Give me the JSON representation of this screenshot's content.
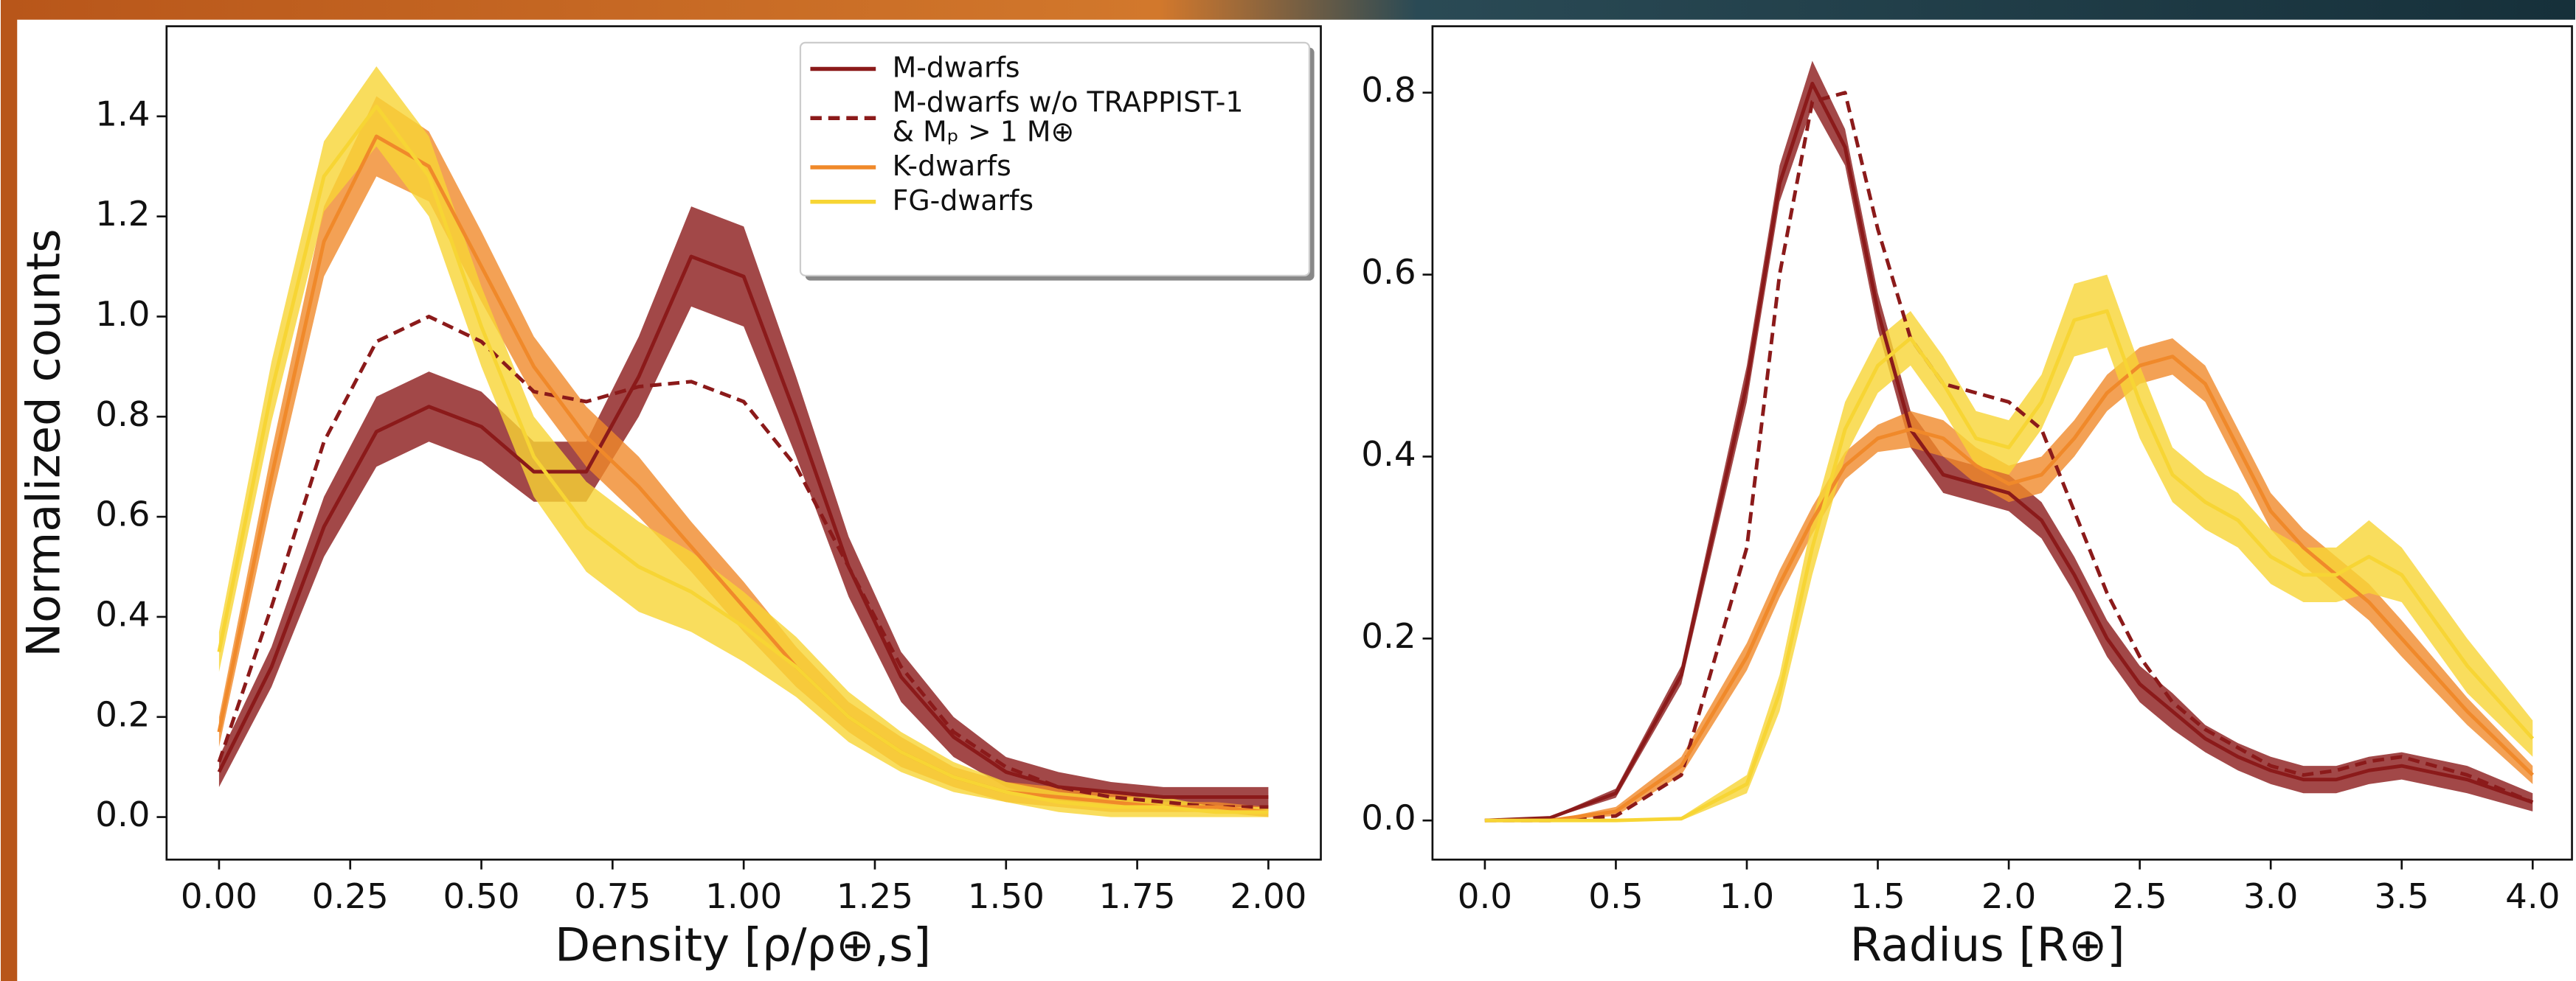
{
  "chart_data": [
    {
      "type": "line",
      "xlabel": "Density [ρ/ρ⊕,s]",
      "ylabel": "Normalized counts",
      "legend": "upper right",
      "x": [
        0,
        0.1,
        0.2,
        0.3,
        0.4,
        0.5,
        0.6,
        0.7,
        0.8,
        0.9,
        1.0,
        1.1,
        1.2,
        1.3,
        1.4,
        1.5,
        1.6,
        1.7,
        1.8,
        1.9,
        2.0
      ],
      "xlim": [
        -0.1,
        2.1
      ],
      "ylim": [
        -0.085,
        1.58
      ],
      "xticks": [
        {
          "value": 0,
          "label": "0.00"
        },
        0.25,
        {
          "value": 0.5,
          "label": "0.50"
        },
        0.75,
        {
          "value": 1,
          "label": "1.00"
        },
        1.25,
        {
          "value": 1.5,
          "label": "1.50"
        },
        1.75,
        {
          "value": 2,
          "label": "2.00"
        }
      ],
      "yticks": [
        {
          "value": 0,
          "label": "0.0"
        },
        0.2,
        0.4,
        0.6,
        0.8,
        {
          "value": 1,
          "label": "1.0"
        },
        1.2,
        1.4
      ],
      "series": [
        {
          "name": "M-dwarfs",
          "color": "#8b1a1a",
          "style": "solid",
          "values": [
            0.09,
            0.3,
            0.58,
            0.77,
            0.82,
            0.78,
            0.69,
            0.69,
            0.88,
            1.12,
            1.08,
            0.8,
            0.5,
            0.28,
            0.16,
            0.09,
            0.06,
            0.05,
            0.04,
            0.04,
            0.04
          ],
          "lower": [
            0.06,
            0.26,
            0.52,
            0.7,
            0.75,
            0.71,
            0.63,
            0.63,
            0.8,
            1.02,
            0.98,
            0.72,
            0.44,
            0.23,
            0.12,
            0.06,
            0.03,
            0.03,
            0.02,
            0.02,
            0.02
          ],
          "upper": [
            0.12,
            0.34,
            0.64,
            0.84,
            0.89,
            0.85,
            0.75,
            0.75,
            0.96,
            1.22,
            1.18,
            0.88,
            0.56,
            0.33,
            0.2,
            0.12,
            0.09,
            0.07,
            0.06,
            0.06,
            0.06
          ]
        },
        {
          "name": "M-dwarfs w/o TRAPPIST-1 & Mₚ > 1 M⊕",
          "color": "#8b1a1a",
          "style": "dashed",
          "values": [
            0.11,
            0.42,
            0.75,
            0.95,
            1.0,
            0.95,
            0.85,
            0.83,
            0.86,
            0.87,
            0.83,
            0.7,
            0.5,
            0.3,
            0.17,
            0.1,
            0.06,
            0.04,
            0.03,
            0.02,
            0.02
          ]
        },
        {
          "name": "K-dwarfs",
          "color": "#f0892a",
          "style": "solid",
          "values": [
            0.17,
            0.68,
            1.15,
            1.36,
            1.3,
            1.1,
            0.9,
            0.76,
            0.66,
            0.54,
            0.42,
            0.3,
            0.2,
            0.13,
            0.08,
            0.05,
            0.04,
            0.03,
            0.02,
            0.02,
            0.01
          ],
          "lower": [
            0.14,
            0.63,
            1.08,
            1.28,
            1.23,
            1.03,
            0.84,
            0.7,
            0.6,
            0.49,
            0.37,
            0.26,
            0.17,
            0.1,
            0.06,
            0.03,
            0.02,
            0.01,
            0.01,
            0.01,
            0
          ],
          "upper": [
            0.2,
            0.73,
            1.22,
            1.44,
            1.37,
            1.17,
            0.96,
            0.82,
            0.72,
            0.59,
            0.47,
            0.34,
            0.23,
            0.16,
            0.1,
            0.07,
            0.06,
            0.05,
            0.03,
            0.03,
            0.02
          ]
        },
        {
          "name": "FG-dwarfs",
          "color": "#f7d534",
          "style": "solid",
          "values": [
            0.33,
            0.85,
            1.28,
            1.42,
            1.28,
            0.98,
            0.72,
            0.58,
            0.5,
            0.45,
            0.38,
            0.3,
            0.2,
            0.13,
            0.08,
            0.05,
            0.03,
            0.02,
            0.02,
            0.01,
            0.01
          ],
          "lower": [
            0.29,
            0.79,
            1.21,
            1.34,
            1.2,
            0.9,
            0.64,
            0.49,
            0.41,
            0.37,
            0.31,
            0.24,
            0.15,
            0.09,
            0.05,
            0.03,
            0.01,
            0,
            0,
            0,
            0
          ],
          "upper": [
            0.37,
            0.91,
            1.35,
            1.5,
            1.36,
            1.06,
            0.8,
            0.67,
            0.59,
            0.53,
            0.45,
            0.36,
            0.25,
            0.17,
            0.11,
            0.07,
            0.05,
            0.04,
            0.04,
            0.02,
            0.02
          ]
        }
      ]
    },
    {
      "type": "line",
      "xlabel": "Radius [R⊕]",
      "x": [
        0,
        0.25,
        0.5,
        0.75,
        1.0,
        1.125,
        1.25,
        1.375,
        1.5,
        1.625,
        1.75,
        1.875,
        2.0,
        2.125,
        2.25,
        2.375,
        2.5,
        2.625,
        2.75,
        2.875,
        3.0,
        3.125,
        3.25,
        3.375,
        3.5,
        3.75,
        4.0
      ],
      "xlim": [
        -0.2,
        4.15
      ],
      "ylim": [
        -0.043,
        0.873
      ],
      "xticks": [
        {
          "value": 0,
          "label": "0.0"
        },
        0.5,
        {
          "value": 1,
          "label": "1.0"
        },
        1.5,
        {
          "value": 2,
          "label": "2.0"
        },
        2.5,
        {
          "value": 3,
          "label": "3.0"
        },
        3.5,
        {
          "value": 4,
          "label": "4.0"
        }
      ],
      "yticks": [
        {
          "value": 0,
          "label": "0.0"
        },
        0.2,
        0.4,
        0.6,
        0.8
      ],
      "series": [
        {
          "color": "#8b1a1a",
          "style": "solid",
          "values": [
            0,
            0.003,
            0.03,
            0.16,
            0.48,
            0.7,
            0.81,
            0.74,
            0.56,
            0.43,
            0.38,
            0.37,
            0.36,
            0.33,
            0.27,
            0.2,
            0.15,
            0.12,
            0.09,
            0.07,
            0.055,
            0.045,
            0.045,
            0.055,
            0.06,
            0.045,
            0.02
          ],
          "lower": [
            0,
            0.002,
            0.025,
            0.15,
            0.46,
            0.68,
            0.785,
            0.72,
            0.54,
            0.41,
            0.36,
            0.35,
            0.34,
            0.31,
            0.25,
            0.18,
            0.13,
            0.1,
            0.075,
            0.055,
            0.04,
            0.03,
            0.03,
            0.04,
            0.045,
            0.03,
            0.01
          ],
          "upper": [
            0,
            0.004,
            0.035,
            0.17,
            0.5,
            0.72,
            0.835,
            0.76,
            0.58,
            0.45,
            0.4,
            0.39,
            0.38,
            0.35,
            0.29,
            0.22,
            0.17,
            0.14,
            0.105,
            0.085,
            0.07,
            0.06,
            0.06,
            0.07,
            0.075,
            0.06,
            0.03
          ]
        },
        {
          "color": "#8b1a1a",
          "style": "dashed",
          "values": [
            0,
            0,
            0.005,
            0.05,
            0.3,
            0.6,
            0.79,
            0.8,
            0.65,
            0.53,
            0.48,
            0.47,
            0.46,
            0.43,
            0.34,
            0.25,
            0.18,
            0.13,
            0.1,
            0.08,
            0.06,
            0.05,
            0.055,
            0.065,
            0.07,
            0.05,
            0.02
          ]
        },
        {
          "color": "#f0892a",
          "style": "solid",
          "values": [
            0,
            0,
            0.01,
            0.06,
            0.18,
            0.26,
            0.33,
            0.39,
            0.42,
            0.43,
            0.42,
            0.39,
            0.37,
            0.38,
            0.42,
            0.47,
            0.5,
            0.51,
            0.48,
            0.41,
            0.34,
            0.3,
            0.27,
            0.24,
            0.2,
            0.12,
            0.05
          ],
          "lower": [
            0,
            0,
            0.005,
            0.05,
            0.165,
            0.245,
            0.315,
            0.375,
            0.405,
            0.41,
            0.4,
            0.37,
            0.35,
            0.36,
            0.4,
            0.45,
            0.48,
            0.49,
            0.46,
            0.39,
            0.32,
            0.28,
            0.25,
            0.22,
            0.18,
            0.105,
            0.04
          ],
          "upper": [
            0,
            0,
            0.015,
            0.07,
            0.195,
            0.275,
            0.345,
            0.405,
            0.435,
            0.45,
            0.44,
            0.41,
            0.39,
            0.4,
            0.44,
            0.49,
            0.52,
            0.53,
            0.5,
            0.43,
            0.36,
            0.32,
            0.29,
            0.26,
            0.22,
            0.135,
            0.06
          ]
        },
        {
          "color": "#f7d534",
          "style": "solid",
          "values": [
            0,
            0,
            0,
            0.002,
            0.04,
            0.14,
            0.3,
            0.43,
            0.5,
            0.53,
            0.48,
            0.42,
            0.41,
            0.46,
            0.55,
            0.56,
            0.46,
            0.38,
            0.35,
            0.33,
            0.29,
            0.27,
            0.27,
            0.29,
            0.27,
            0.17,
            0.09
          ],
          "lower": [
            0,
            0,
            0,
            0,
            0.03,
            0.12,
            0.27,
            0.4,
            0.47,
            0.5,
            0.45,
            0.39,
            0.38,
            0.43,
            0.51,
            0.52,
            0.42,
            0.35,
            0.32,
            0.3,
            0.26,
            0.24,
            0.24,
            0.25,
            0.24,
            0.14,
            0.07
          ],
          "upper": [
            0,
            0,
            0,
            0.004,
            0.05,
            0.16,
            0.33,
            0.46,
            0.53,
            0.56,
            0.51,
            0.45,
            0.44,
            0.49,
            0.59,
            0.6,
            0.5,
            0.41,
            0.38,
            0.36,
            0.32,
            0.3,
            0.3,
            0.33,
            0.3,
            0.2,
            0.11
          ]
        }
      ]
    }
  ]
}
